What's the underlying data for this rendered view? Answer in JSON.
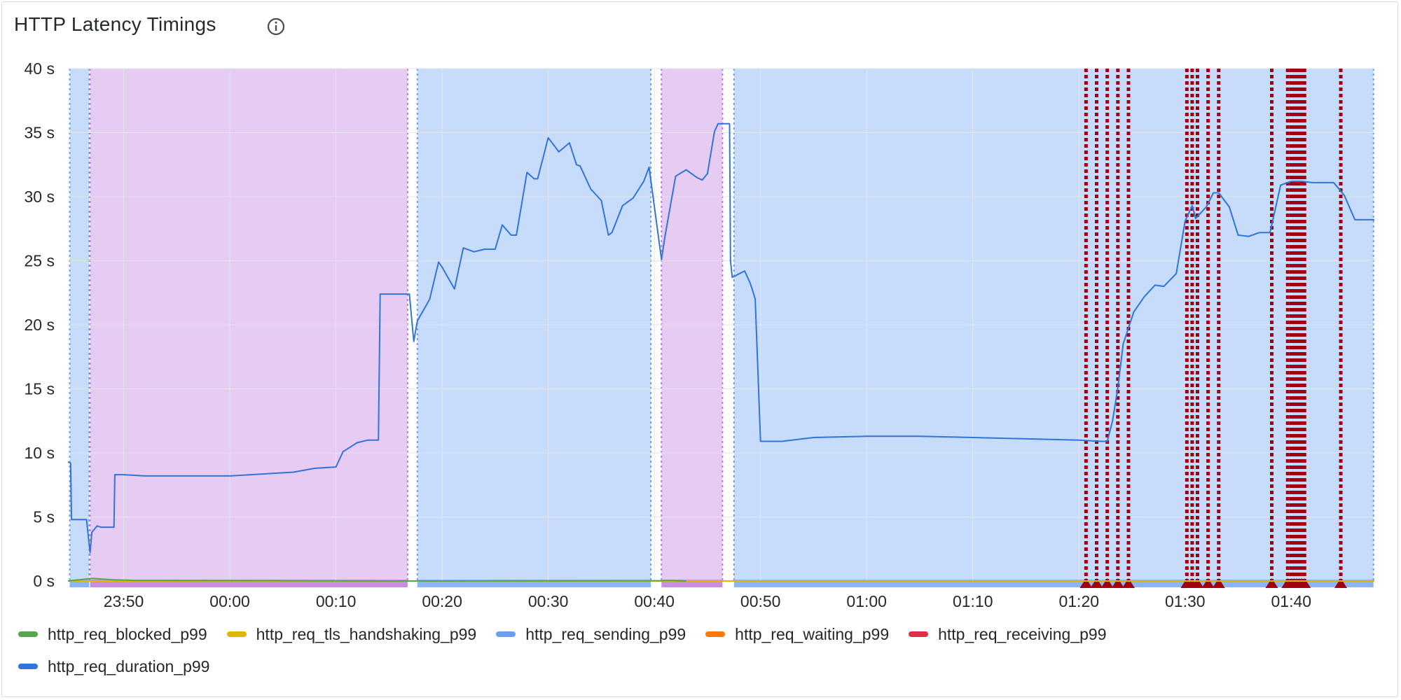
{
  "panel": {
    "title": "HTTP Latency Timings",
    "info_icon": "info-circle-icon"
  },
  "colors": {
    "annotation_purple": "#e6cbf2",
    "annotation_blue": "#c6dcfa",
    "annotation_purple_line": "#b57edc",
    "annotation_blue_line": "#6f9fe8",
    "alert_red": "#a0000f",
    "baseline_red": "#e02f44",
    "grid": "#e3e6ea"
  },
  "chart_data": {
    "type": "line",
    "ylim": [
      0,
      40
    ],
    "y_ticks": [
      0,
      5,
      10,
      15,
      20,
      25,
      30,
      35,
      40
    ],
    "y_tick_labels": [
      "0 s",
      "5 s",
      "10 s",
      "15 s",
      "20 s",
      "25 s",
      "30 s",
      "35 s",
      "40 s"
    ],
    "xlim": [
      "23:44:45",
      "01:47:50"
    ],
    "x_ticks": [
      "23:50",
      "00:00",
      "00:10",
      "00:20",
      "00:30",
      "00:40",
      "00:50",
      "01:00",
      "01:10",
      "01:20",
      "01:30",
      "01:40"
    ],
    "grid": true,
    "legend_placement": "bottom",
    "legend": [
      {
        "name": "http_req_blocked_p99",
        "color": "#56a64b"
      },
      {
        "name": "http_req_tls_handshaking_p99",
        "color": "#e0b400"
      },
      {
        "name": "http_req_sending_p99",
        "color": "#6a9ff0"
      },
      {
        "name": "http_req_waiting_p99",
        "color": "#ff780a"
      },
      {
        "name": "http_req_receiving_p99",
        "color": "#e02f44"
      },
      {
        "name": "http_req_duration_p99",
        "color": "#3274d9"
      }
    ],
    "annotation_regions": [
      {
        "start": "23:44:55",
        "end": "23:46:45",
        "color": "blue"
      },
      {
        "start": "23:46:50",
        "end": "00:16:45",
        "color": "purple"
      },
      {
        "start": "00:17:40",
        "end": "00:39:40",
        "color": "blue"
      },
      {
        "start": "00:40:40",
        "end": "00:46:25",
        "color": "purple"
      },
      {
        "start": "00:47:30",
        "end": "01:47:45",
        "color": "blue"
      }
    ],
    "alert_markers": [
      "01:20:40",
      "01:21:40",
      "01:22:40",
      "01:23:40",
      "01:24:40",
      "01:30:10",
      "01:30:40",
      "01:31:10",
      "01:32:10",
      "01:33:10",
      "01:38:10",
      "01:39:40",
      "01:40:00",
      "01:40:15",
      "01:40:30",
      "01:40:45",
      "01:41:00",
      "01:41:15",
      "01:44:40"
    ],
    "series": [
      {
        "name": "http_req_duration_p99",
        "color": "#3274d9",
        "x": [
          "23:44:45",
          "23:45:00",
          "23:45:05",
          "23:46:30",
          "23:46:50",
          "23:47:00",
          "23:47:30",
          "23:47:50",
          "23:48:30",
          "23:49:05",
          "23:49:10",
          "23:50:00",
          "23:52:00",
          "23:55:00",
          "00:00:00",
          "00:02:00",
          "00:04:00",
          "00:06:00",
          "00:08:00",
          "00:10:00",
          "00:10:40",
          "00:12:00",
          "00:13:00",
          "00:14:00",
          "00:14:10",
          "00:16:55",
          "00:17:20",
          "00:17:40",
          "00:18:50",
          "00:19:40",
          "00:20:00",
          "00:21:10",
          "00:22:00",
          "00:23:00",
          "00:24:00",
          "00:25:00",
          "00:25:40",
          "00:26:30",
          "00:27:00",
          "00:28:00",
          "00:28:40",
          "00:29:00",
          "00:30:00",
          "00:31:00",
          "00:32:00",
          "00:32:40",
          "00:33:00",
          "00:34:00",
          "00:35:00",
          "00:35:40",
          "00:36:00",
          "00:37:00",
          "00:38:00",
          "00:39:00",
          "00:39:30",
          "00:40:40",
          "00:41:00",
          "00:42:00",
          "00:43:00",
          "00:44:00",
          "00:44:30",
          "00:45:00",
          "00:45:40",
          "00:46:00",
          "00:47:05",
          "00:47:10",
          "00:47:20",
          "00:48:30",
          "00:49:00",
          "00:49:10",
          "00:49:30",
          "00:50:00",
          "00:52:00",
          "00:55:00",
          "01:00:00",
          "01:05:00",
          "01:10:00",
          "01:15:00",
          "01:20:00",
          "01:22:00",
          "01:22:40",
          "01:23:10",
          "01:23:40",
          "01:24:10",
          "01:25:10",
          "01:26:10",
          "01:27:10",
          "01:28:00",
          "01:29:10",
          "01:30:00",
          "01:30:40",
          "01:31:00",
          "01:32:00",
          "01:32:40",
          "01:33:10",
          "01:34:10",
          "01:35:00",
          "01:36:00",
          "01:37:00",
          "01:38:00",
          "01:39:00",
          "01:40:00",
          "01:41:00",
          "01:42:00",
          "01:43:00",
          "01:44:00",
          "01:45:00",
          "01:46:00",
          "01:46:20",
          "01:47:00",
          "01:47:50"
        ],
        "values": [
          9.3,
          9.2,
          4.8,
          4.8,
          2.2,
          3.8,
          4.3,
          4.2,
          4.2,
          4.2,
          8.3,
          8.3,
          8.2,
          8.2,
          8.2,
          8.3,
          8.4,
          8.5,
          8.8,
          8.9,
          10.1,
          10.8,
          11.0,
          11.0,
          22.4,
          22.4,
          18.7,
          20.3,
          22.0,
          24.9,
          24.5,
          22.8,
          26.0,
          25.7,
          25.9,
          25.9,
          27.8,
          27.0,
          27.0,
          31.9,
          31.4,
          31.4,
          34.6,
          33.5,
          34.2,
          32.5,
          32.4,
          30.6,
          29.7,
          27.0,
          27.2,
          29.3,
          29.9,
          31.2,
          32.3,
          25.1,
          26.9,
          31.6,
          32.1,
          31.5,
          31.3,
          31.8,
          35.1,
          35.7,
          35.7,
          25.0,
          23.7,
          24.2,
          23.3,
          22.9,
          22.0,
          10.9,
          10.9,
          11.2,
          11.3,
          11.3,
          11.2,
          11.1,
          11.0,
          10.9,
          10.9,
          12.5,
          15.1,
          18.5,
          21.0,
          22.2,
          23.1,
          23.0,
          24.0,
          28.1,
          29.3,
          28.3,
          29.2,
          30.3,
          30.3,
          29.2,
          27.0,
          26.9,
          27.2,
          27.2,
          30.9,
          31.2,
          31.2,
          31.1,
          31.1,
          31.1,
          30.1,
          28.2,
          28.2,
          28.2,
          28.2
        ]
      },
      {
        "name": "http_req_blocked_p99",
        "color": "#56a64b",
        "x": [
          "23:44:45",
          "23:47:00",
          "23:49:00",
          "23:51:00",
          "00:16:55",
          "00:40:40",
          "00:41:30",
          "00:43:00"
        ],
        "values": [
          0,
          0.2,
          0.1,
          0.05,
          0,
          0.02,
          0.05,
          0
        ]
      },
      {
        "name": "http_req_tls_handshaking_p99",
        "color": "#e0b400",
        "x": [
          "23:44:45",
          "01:47:50"
        ],
        "values": [
          0,
          0
        ]
      },
      {
        "name": "http_req_sending_p99",
        "color": "#6a9ff0",
        "x": [
          "23:44:45",
          "01:47:50"
        ],
        "values": [
          0,
          0
        ]
      },
      {
        "name": "http_req_waiting_p99",
        "color": "#ff780a",
        "x": [
          "23:44:45",
          "01:47:50"
        ],
        "values": [
          0,
          0
        ]
      },
      {
        "name": "http_req_receiving_p99",
        "color": "#e02f44",
        "x": [
          "23:44:45",
          "01:47:50"
        ],
        "values": [
          0,
          0
        ]
      }
    ]
  }
}
